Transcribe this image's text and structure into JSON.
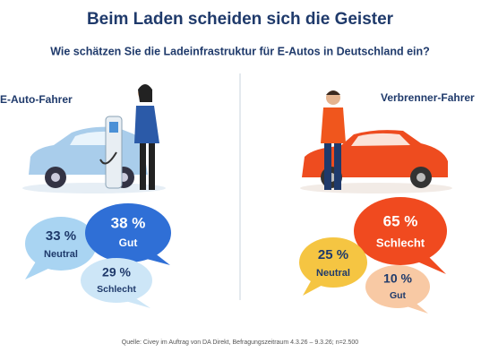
{
  "header": {
    "title": "Beim Laden scheiden sich die Geister",
    "subtitle": "Wie schätzen Sie die Ladeinfrastruktur für E-Autos in Deutschland ein?"
  },
  "groups": [
    {
      "label": "E-Auto-Fahrer",
      "bubbles": [
        {
          "value": "38 %",
          "label": "Gut"
        },
        {
          "value": "33 %",
          "label": "Neutral"
        },
        {
          "value": "29 %",
          "label": "Schlecht"
        }
      ]
    },
    {
      "label": "Verbrenner-Fahrer",
      "bubbles": [
        {
          "value": "65 %",
          "label": "Schlecht"
        },
        {
          "value": "25 %",
          "label": "Neutral"
        },
        {
          "value": "10 %",
          "label": "Gut"
        }
      ]
    }
  ],
  "source": "Quelle: Civey im Auftrag von DA Direkt, Befragungszeitraum 4.3.26 – 9.3.26; n=2.500"
}
